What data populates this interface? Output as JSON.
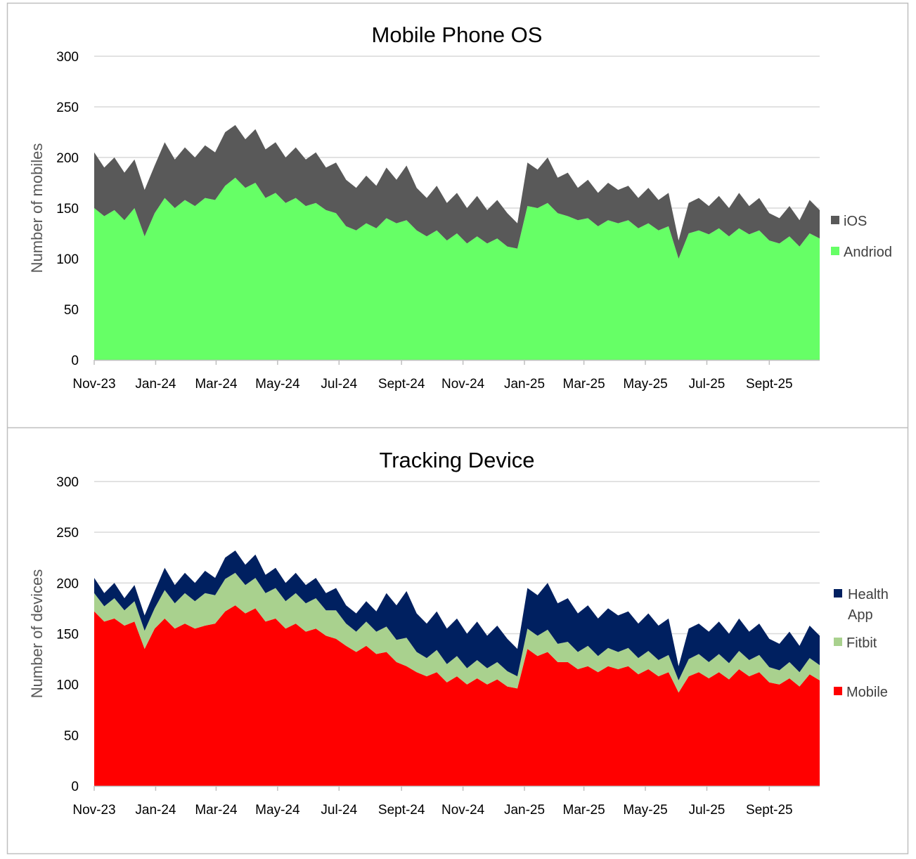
{
  "chart_data": [
    {
      "type": "area",
      "stacked": true,
      "title": "Mobile Phone OS",
      "xlabel": "",
      "ylabel": "Number of mobiles",
      "ylim": [
        0,
        300
      ],
      "yticks": [
        0,
        50,
        100,
        150,
        200,
        250,
        300
      ],
      "grid": true,
      "legend_position": "right",
      "x_start_date": "2023-11-01",
      "x_step_days": 10,
      "xlim_days": [
        0,
        720
      ],
      "xticks": [
        {
          "label": "Nov-23",
          "day": 0
        },
        {
          "label": "Jan-24",
          "day": 61
        },
        {
          "label": "Mar-24",
          "day": 121
        },
        {
          "label": "May-24",
          "day": 182
        },
        {
          "label": "Jul-24",
          "day": 243
        },
        {
          "label": "Sept-24",
          "day": 305
        },
        {
          "label": "Nov-24",
          "day": 366
        },
        {
          "label": "Jan-25",
          "day": 427
        },
        {
          "label": "Mar-25",
          "day": 486
        },
        {
          "label": "May-25",
          "day": 547
        },
        {
          "label": "Jul-25",
          "day": 608
        },
        {
          "label": "Sept-25",
          "day": 670
        }
      ],
      "series": [
        {
          "name": "Andriod",
          "color": "#66ff66",
          "values": [
            150,
            142,
            148,
            138,
            150,
            122,
            145,
            160,
            150,
            158,
            152,
            160,
            158,
            172,
            180,
            170,
            175,
            160,
            165,
            155,
            160,
            152,
            155,
            148,
            145,
            132,
            128,
            135,
            130,
            140,
            135,
            138,
            128,
            122,
            128,
            118,
            125,
            115,
            122,
            115,
            120,
            112,
            110,
            152,
            150,
            155,
            145,
            142,
            138,
            140,
            132,
            138,
            135,
            138,
            130,
            135,
            128,
            132,
            100,
            125,
            128,
            124,
            130,
            122,
            130,
            124,
            128,
            118,
            115,
            122,
            112,
            125,
            120
          ]
        },
        {
          "name": "iOS",
          "color": "#595959",
          "values": [
            55,
            48,
            52,
            47,
            48,
            46,
            47,
            55,
            48,
            52,
            48,
            52,
            47,
            53,
            52,
            48,
            53,
            48,
            50,
            45,
            50,
            46,
            50,
            42,
            50,
            46,
            42,
            47,
            42,
            50,
            43,
            54,
            42,
            38,
            44,
            37,
            40,
            35,
            40,
            33,
            38,
            33,
            25,
            43,
            38,
            45,
            35,
            43,
            32,
            38,
            33,
            37,
            33,
            34,
            30,
            35,
            30,
            33,
            18,
            30,
            32,
            28,
            32,
            28,
            35,
            28,
            32,
            27,
            25,
            30,
            26,
            33,
            28
          ]
        }
      ]
    },
    {
      "type": "area",
      "stacked": true,
      "title": "Tracking Device",
      "xlabel": "",
      "ylabel": "Number of devices",
      "ylim": [
        0,
        300
      ],
      "yticks": [
        0,
        50,
        100,
        150,
        200,
        250,
        300
      ],
      "grid": true,
      "legend_position": "right",
      "x_start_date": "2023-11-01",
      "x_step_days": 10,
      "xlim_days": [
        0,
        720
      ],
      "xticks": [
        {
          "label": "Nov-23",
          "day": 0
        },
        {
          "label": "Jan-24",
          "day": 61
        },
        {
          "label": "Mar-24",
          "day": 121
        },
        {
          "label": "May-24",
          "day": 182
        },
        {
          "label": "Jul-24",
          "day": 243
        },
        {
          "label": "Sept-24",
          "day": 305
        },
        {
          "label": "Nov-24",
          "day": 366
        },
        {
          "label": "Jan-25",
          "day": 427
        },
        {
          "label": "Mar-25",
          "day": 486
        },
        {
          "label": "May-25",
          "day": 547
        },
        {
          "label": "Jul-25",
          "day": 608
        },
        {
          "label": "Sept-25",
          "day": 670
        }
      ],
      "series": [
        {
          "name": "Mobile",
          "color": "#ff0000",
          "values": [
            172,
            162,
            165,
            158,
            162,
            135,
            155,
            165,
            155,
            160,
            155,
            158,
            160,
            172,
            178,
            170,
            175,
            162,
            165,
            155,
            160,
            152,
            155,
            148,
            145,
            138,
            132,
            138,
            130,
            132,
            122,
            118,
            112,
            108,
            112,
            102,
            108,
            100,
            106,
            100,
            105,
            98,
            96,
            135,
            128,
            132,
            122,
            122,
            115,
            118,
            112,
            118,
            115,
            118,
            110,
            115,
            108,
            112,
            92,
            108,
            112,
            106,
            112,
            105,
            115,
            108,
            112,
            102,
            100,
            106,
            98,
            110,
            104
          ]
        },
        {
          "name": "Fitbit",
          "color": "#a9d18e",
          "values": [
            18,
            15,
            20,
            15,
            20,
            18,
            20,
            28,
            25,
            30,
            27,
            32,
            28,
            32,
            32,
            28,
            30,
            28,
            30,
            27,
            30,
            28,
            30,
            25,
            28,
            22,
            20,
            24,
            22,
            25,
            22,
            28,
            20,
            18,
            22,
            18,
            20,
            16,
            18,
            16,
            17,
            15,
            12,
            20,
            20,
            22,
            18,
            20,
            17,
            20,
            16,
            18,
            17,
            18,
            16,
            18,
            16,
            17,
            12,
            17,
            18,
            16,
            18,
            16,
            18,
            16,
            17,
            15,
            14,
            16,
            14,
            16,
            15
          ]
        },
        {
          "name": "Health App",
          "color": "#002060",
          "values": [
            15,
            13,
            15,
            12,
            16,
            15,
            17,
            22,
            18,
            20,
            18,
            22,
            17,
            21,
            22,
            20,
            23,
            18,
            20,
            18,
            20,
            18,
            20,
            17,
            22,
            18,
            18,
            20,
            20,
            33,
            34,
            46,
            38,
            34,
            38,
            35,
            37,
            34,
            38,
            32,
            36,
            32,
            27,
            40,
            40,
            46,
            40,
            43,
            38,
            40,
            37,
            39,
            36,
            36,
            34,
            37,
            34,
            36,
            14,
            30,
            30,
            30,
            32,
            29,
            32,
            28,
            31,
            28,
            26,
            30,
            26,
            32,
            29
          ]
        }
      ]
    }
  ]
}
